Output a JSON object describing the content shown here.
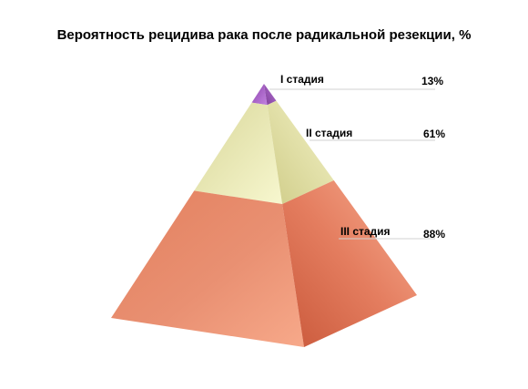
{
  "chart_data": {
    "type": "pyramid",
    "title": "Вероятность рецидива рака после радикальной резекции, %",
    "categories": [
      "I стадия",
      "II стадия",
      "III стадия"
    ],
    "values": [
      13,
      61,
      88
    ],
    "value_labels": [
      "13%",
      "61%",
      "88%"
    ],
    "colors": [
      "#9b59b6",
      "#ecebb4",
      "#e8775a"
    ],
    "legend": "none",
    "grid": false
  }
}
